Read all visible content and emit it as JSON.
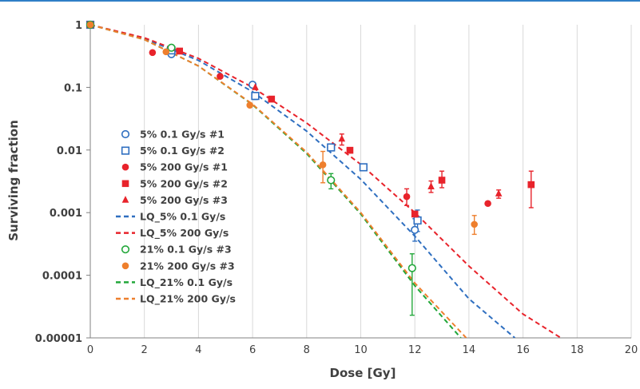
{
  "chart_data": {
    "type": "scatter",
    "xlabel": "Dose [Gy]",
    "ylabel": "Surviving fraction",
    "xlim": [
      0,
      20
    ],
    "ylim": [
      1e-05,
      1
    ],
    "yscale": "log",
    "xticks": [
      "0",
      "2",
      "4",
      "6",
      "8",
      "10",
      "12",
      "14",
      "16",
      "18",
      "20"
    ],
    "yticks": [
      "1",
      "0.1",
      "0.01",
      "0.001",
      "0.0001",
      "0.00001"
    ],
    "grid": "vertical",
    "legend_position": "center-left",
    "series": [
      {
        "name": "5% 0.1 Gy/s #1",
        "marker": "circle-open",
        "color": "#2f6fc0",
        "points": [
          {
            "x": 0,
            "y": 1
          },
          {
            "x": 3,
            "y": 0.34
          },
          {
            "x": 6,
            "y": 0.11
          },
          {
            "x": 8.9,
            "y": 0.011
          },
          {
            "x": 12,
            "y": 0.00053,
            "err": [
              0.00035,
              0.0008
            ]
          }
        ]
      },
      {
        "name": "5% 0.1 Gy/s #2",
        "marker": "square-open",
        "color": "#2f6fc0",
        "points": [
          {
            "x": 0,
            "y": 1
          },
          {
            "x": 3,
            "y": 0.39
          },
          {
            "x": 6.1,
            "y": 0.073,
            "err": [
              0.064,
              0.083
            ]
          },
          {
            "x": 8.9,
            "y": 0.011
          },
          {
            "x": 10.1,
            "y": 0.0053
          },
          {
            "x": 12.1,
            "y": 0.00075,
            "err": [
              0.0005,
              0.0011
            ]
          }
        ]
      },
      {
        "name": "5% 200 Gy/s #1",
        "marker": "circle-filled",
        "color": "#e8232b",
        "points": [
          {
            "x": 0,
            "y": 1
          },
          {
            "x": 2.3,
            "y": 0.36
          },
          {
            "x": 4.8,
            "y": 0.15
          },
          {
            "x": 11.7,
            "y": 0.0018,
            "err": [
              0.0013,
              0.0024
            ]
          },
          {
            "x": 14.7,
            "y": 0.0014
          }
        ]
      },
      {
        "name": "5% 200 Gy/s #2",
        "marker": "square-filled",
        "color": "#e8232b",
        "points": [
          {
            "x": 0,
            "y": 1
          },
          {
            "x": 3.3,
            "y": 0.38
          },
          {
            "x": 6.7,
            "y": 0.065
          },
          {
            "x": 9.6,
            "y": 0.0099
          },
          {
            "x": 12,
            "y": 0.00095
          },
          {
            "x": 13,
            "y": 0.0033,
            "err": [
              0.0025,
              0.0046
            ]
          },
          {
            "x": 16.3,
            "y": 0.0028,
            "err": [
              0.0012,
              0.0046
            ]
          }
        ]
      },
      {
        "name": "5% 200 Gy/s #3",
        "marker": "triangle-filled",
        "color": "#e8232b",
        "points": [
          {
            "x": 0,
            "y": 1
          },
          {
            "x": 3,
            "y": 0.42
          },
          {
            "x": 6.1,
            "y": 0.1
          },
          {
            "x": 9.3,
            "y": 0.015,
            "err": [
              0.012,
              0.018
            ]
          },
          {
            "x": 12.6,
            "y": 0.0026,
            "err": [
              0.0021,
              0.0032
            ]
          },
          {
            "x": 15.1,
            "y": 0.002,
            "err": [
              0.0017,
              0.0023
            ]
          }
        ]
      },
      {
        "name": "LQ_5% 0.1 Gy/s",
        "line": "dashed",
        "color": "#2f6fc0",
        "points": [
          {
            "x": 0,
            "y": 1
          },
          {
            "x": 2,
            "y": 0.6
          },
          {
            "x": 4,
            "y": 0.27
          },
          {
            "x": 6,
            "y": 0.085
          },
          {
            "x": 8,
            "y": 0.02
          },
          {
            "x": 10,
            "y": 0.0034
          },
          {
            "x": 12,
            "y": 0.00042
          },
          {
            "x": 14,
            "y": 4.2e-05
          },
          {
            "x": 15.7,
            "y": 1e-05
          }
        ]
      },
      {
        "name": "LQ_5% 200 Gy/s",
        "line": "dashed",
        "color": "#e8232b",
        "points": [
          {
            "x": 0,
            "y": 1
          },
          {
            "x": 2,
            "y": 0.62
          },
          {
            "x": 4,
            "y": 0.29
          },
          {
            "x": 6,
            "y": 0.1
          },
          {
            "x": 8,
            "y": 0.027
          },
          {
            "x": 10,
            "y": 0.0059
          },
          {
            "x": 12,
            "y": 0.001
          },
          {
            "x": 14,
            "y": 0.00014
          },
          {
            "x": 16,
            "y": 2.4e-05
          },
          {
            "x": 17.4,
            "y": 1e-05
          }
        ]
      },
      {
        "name": "21% 0.1 Gy/s #3",
        "marker": "circle-open",
        "color": "#22a73a",
        "points": [
          {
            "x": 0,
            "y": 1
          },
          {
            "x": 3,
            "y": 0.43
          },
          {
            "x": 8.9,
            "y": 0.0033,
            "err": [
              0.0024,
              0.0042
            ]
          },
          {
            "x": 11.9,
            "y": 0.00013,
            "err": [
              2.3e-05,
              0.00022
            ]
          }
        ]
      },
      {
        "name": "21% 200 Gy/s #3",
        "marker": "circle-filled",
        "color": "#ee7f2d",
        "points": [
          {
            "x": 0,
            "y": 1
          },
          {
            "x": 2.8,
            "y": 0.37
          },
          {
            "x": 5.9,
            "y": 0.052
          },
          {
            "x": 8.6,
            "y": 0.0058,
            "err": [
              0.003,
              0.0095
            ]
          },
          {
            "x": 14.2,
            "y": 0.00065,
            "err": [
              0.00045,
              0.0009
            ]
          }
        ]
      },
      {
        "name": "LQ_21% 0.1 Gy/s",
        "line": "dashed",
        "color": "#22a73a",
        "points": [
          {
            "x": 0,
            "y": 1
          },
          {
            "x": 2,
            "y": 0.58
          },
          {
            "x": 4,
            "y": 0.22
          },
          {
            "x": 6,
            "y": 0.053
          },
          {
            "x": 8,
            "y": 0.0088
          },
          {
            "x": 10,
            "y": 0.00095
          },
          {
            "x": 12,
            "y": 6.8e-05
          },
          {
            "x": 13.7,
            "y": 1e-05
          }
        ]
      },
      {
        "name": "LQ_21% 200 Gy/s",
        "line": "dashed",
        "color": "#ee7f2d",
        "points": [
          {
            "x": 0,
            "y": 1
          },
          {
            "x": 2,
            "y": 0.58
          },
          {
            "x": 4,
            "y": 0.22
          },
          {
            "x": 6,
            "y": 0.054
          },
          {
            "x": 8,
            "y": 0.0092
          },
          {
            "x": 10,
            "y": 0.001
          },
          {
            "x": 12,
            "y": 7.5e-05
          },
          {
            "x": 13.9,
            "y": 1e-05
          }
        ]
      }
    ]
  }
}
